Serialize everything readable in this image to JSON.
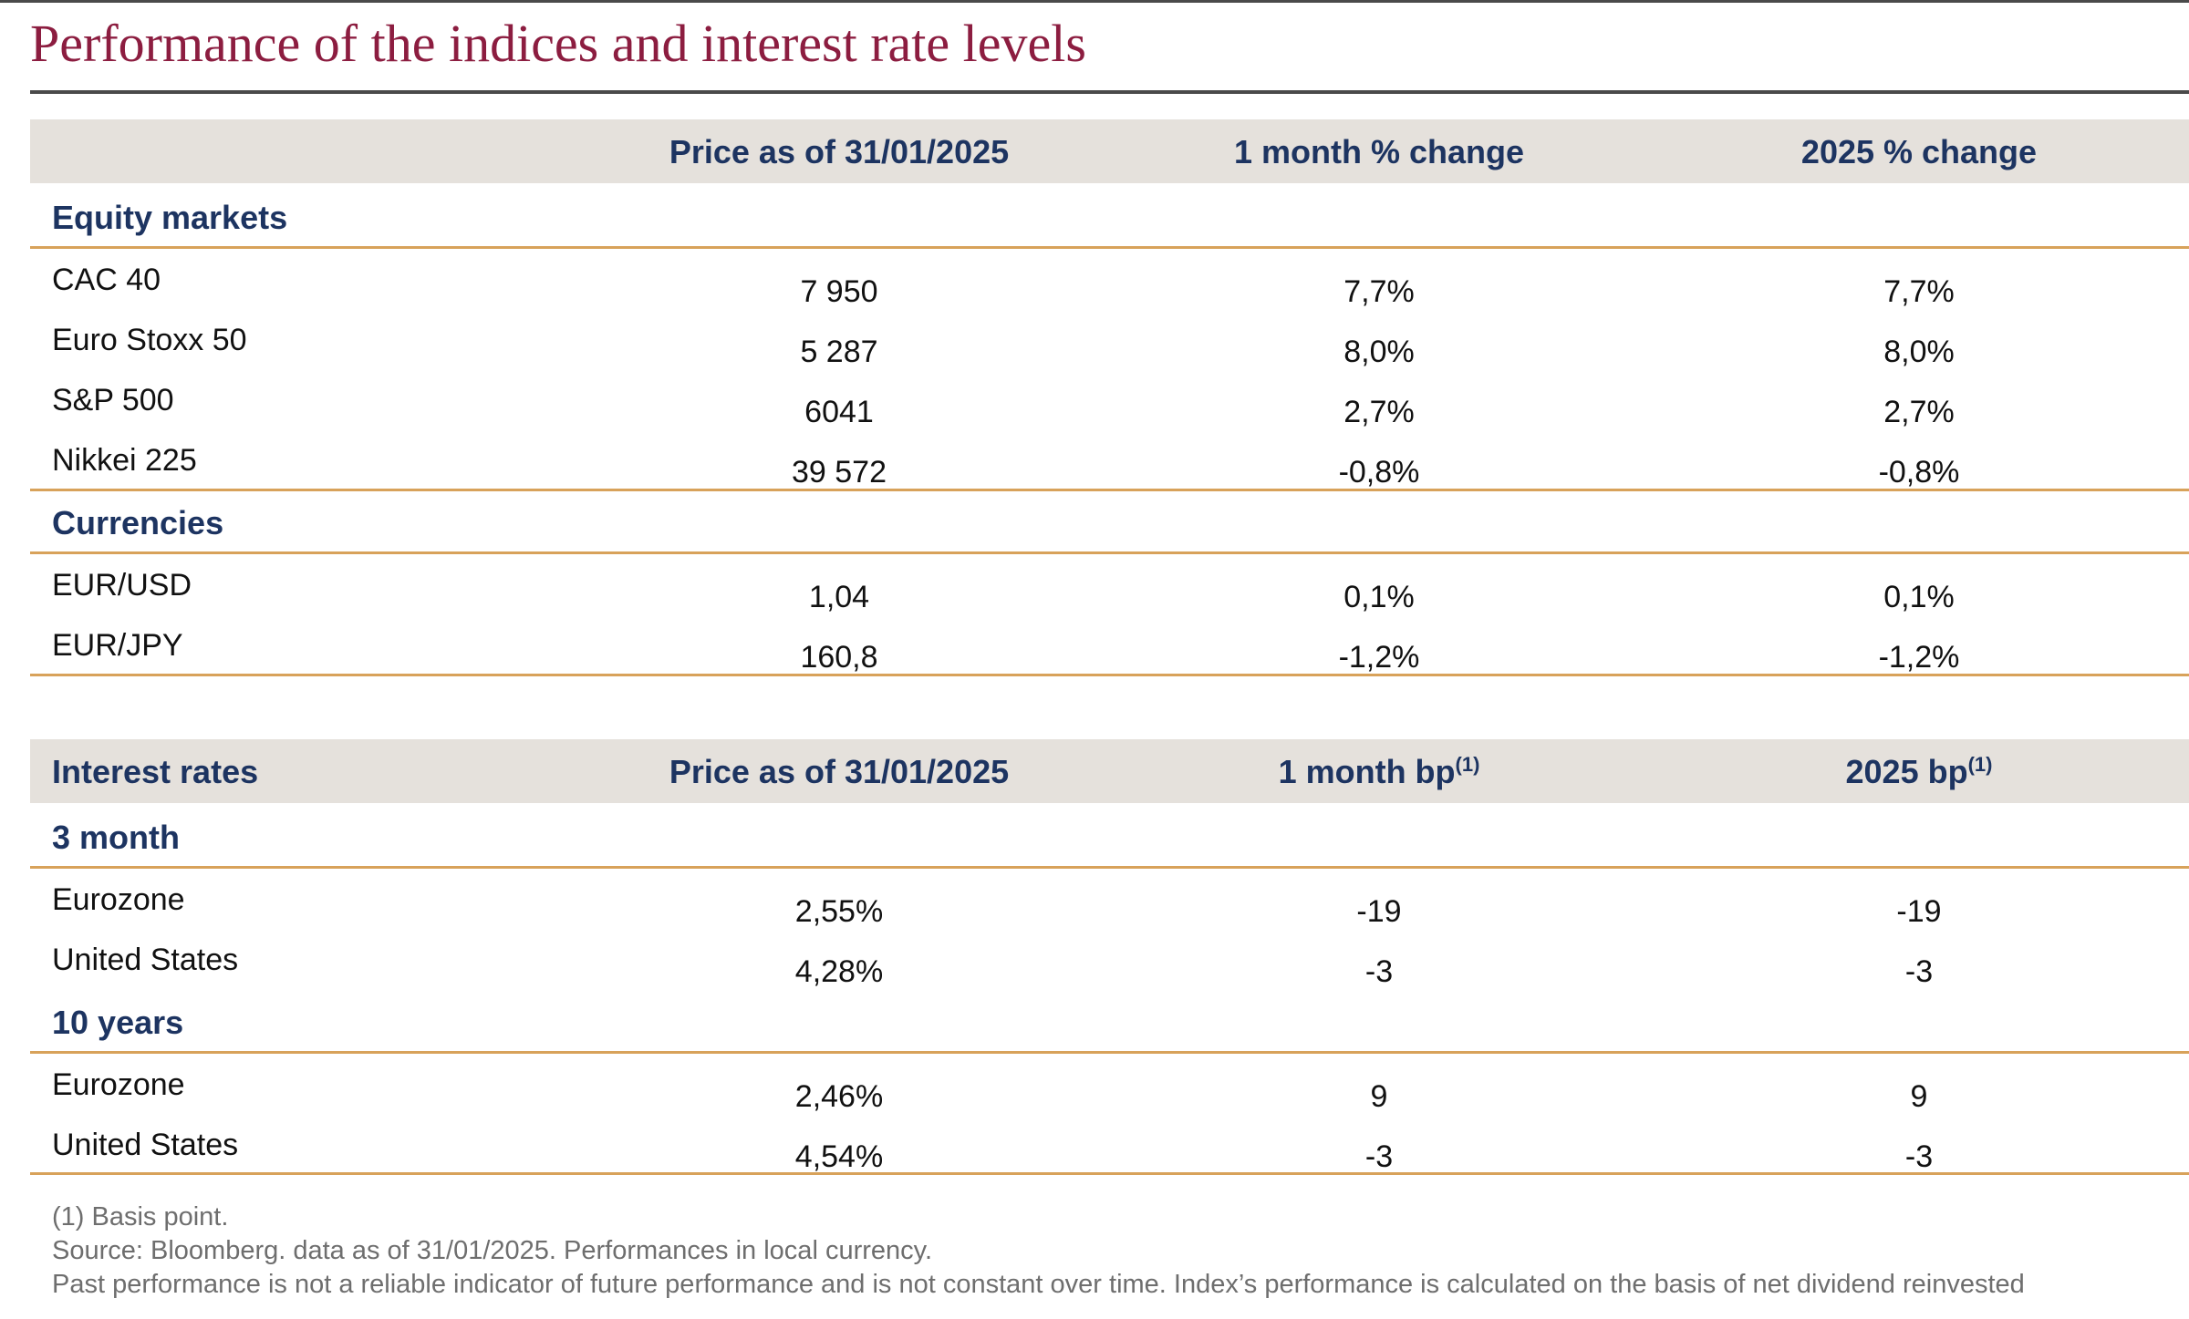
{
  "title": "Performance of the indices and interest rate levels",
  "table1": {
    "headers": [
      "",
      "Price as of 31/01/2025",
      "1 month % change",
      "2025 % change"
    ],
    "sections": [
      {
        "label": "Equity markets",
        "rows": [
          {
            "name": "CAC 40",
            "price": "7 950",
            "month": "7,7%",
            "ytd": "7,7%"
          },
          {
            "name": "Euro Stoxx 50",
            "price": "5 287",
            "month": "8,0%",
            "ytd": "8,0%"
          },
          {
            "name": "S&P 500",
            "price": "6041",
            "month": "2,7%",
            "ytd": "2,7%"
          },
          {
            "name": "Nikkei 225",
            "price": "39 572",
            "month": "-0,8%",
            "ytd": "-0,8%"
          }
        ]
      },
      {
        "label": "Currencies",
        "rows": [
          {
            "name": "EUR/USD",
            "price": "1,04",
            "month": "0,1%",
            "ytd": "0,1%"
          },
          {
            "name": "EUR/JPY",
            "price": "160,8",
            "month": "-1,2%",
            "ytd": "-1,2%"
          }
        ]
      }
    ]
  },
  "table2": {
    "headers": [
      "Interest rates",
      "Price as of 31/01/2025",
      "1 month bp",
      "2025 bp"
    ],
    "header_sup": "(1)",
    "sections": [
      {
        "label": "3 month",
        "rows": [
          {
            "name": "Eurozone",
            "price": "2,55%",
            "month": "-19",
            "ytd": "-19"
          },
          {
            "name": "United States",
            "price": "4,28%",
            "month": "-3",
            "ytd": "-3"
          }
        ]
      },
      {
        "label": "10 years",
        "rows": [
          {
            "name": "Eurozone",
            "price": "2,46%",
            "month": "9",
            "ytd": "9"
          },
          {
            "name": "United States",
            "price": "4,54%",
            "month": "-3",
            "ytd": "-3"
          }
        ]
      }
    ]
  },
  "footnotes": [
    "(1) Basis point.",
    "Source: Bloomberg. data as of 31/01/2025. Performances in local currency.",
    "Past performance is not a reliable indicator of future performance and is not constant over time. Index’s performance is calculated on the basis of net dividend reinvested"
  ]
}
